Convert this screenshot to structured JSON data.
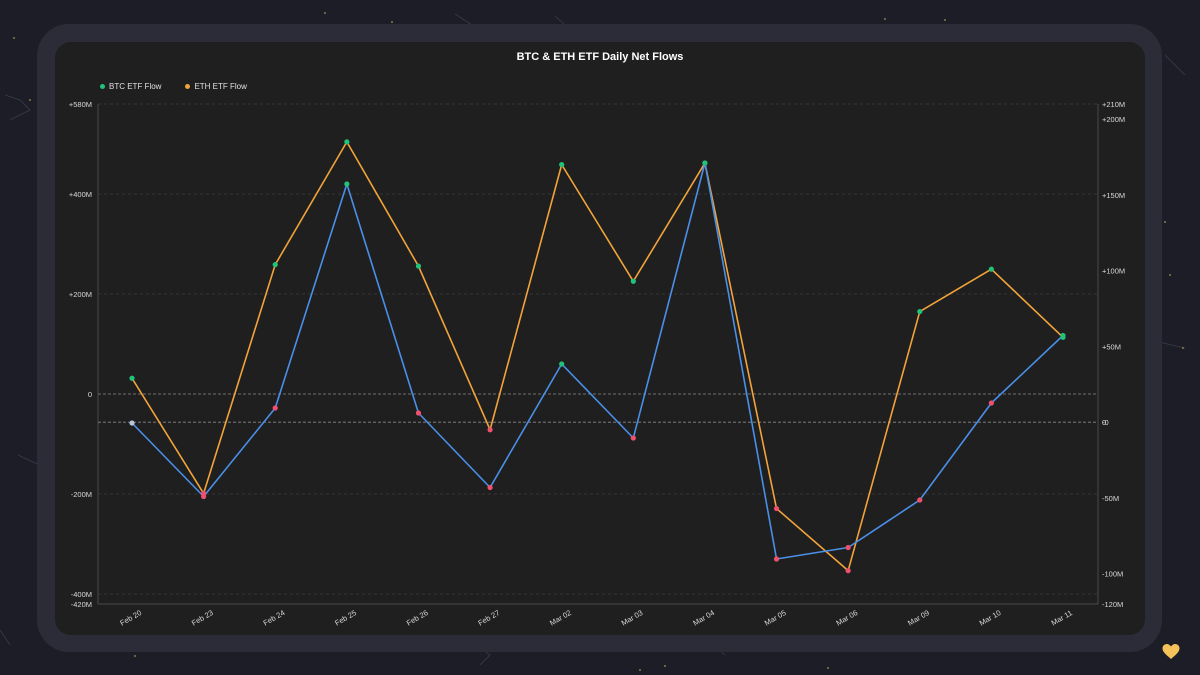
{
  "chart_data": {
    "type": "line",
    "title": "BTC & ETH ETF Daily Net Flows",
    "categories": [
      "Feb 20",
      "Feb 23",
      "Feb 24",
      "Feb 25",
      "Feb 26",
      "Feb 27",
      "Mar 02",
      "Mar 03",
      "Mar 04",
      "Mar 05",
      "Mar 06",
      "Mar 09",
      "Mar 10",
      "Mar 11"
    ],
    "series": [
      {
        "name": "BTC ETF Flow",
        "axis": "left",
        "color": "#4a8fe8",
        "values": [
          -58,
          -205,
          -28,
          420,
          -38,
          -187,
          60,
          -88,
          462,
          -330,
          -307,
          -212,
          -18,
          117
        ]
      },
      {
        "name": "ETH ETF Flow",
        "axis": "right",
        "color": "#f2a33a",
        "values": [
          29,
          -47,
          104,
          185,
          103,
          -5,
          170,
          93,
          171,
          -57,
          -98,
          73,
          101,
          56
        ]
      }
    ],
    "left_axis": {
      "min": -420,
      "max": 580,
      "ticks": [
        "+580M",
        "+400M",
        "+200M",
        "0",
        "-200M",
        "-400M",
        "-420M"
      ]
    },
    "right_axis": {
      "min": -120,
      "max": 210,
      "ticks": [
        "+210M",
        "+200M",
        "+150M",
        "+100M",
        "+50M",
        "0",
        "-0",
        "-50M",
        "-100M",
        "-120M"
      ]
    },
    "marker_colors": {
      "positive": "#22c27a",
      "negative": "#f0506e",
      "neutral": "#b8c4d8"
    }
  }
}
